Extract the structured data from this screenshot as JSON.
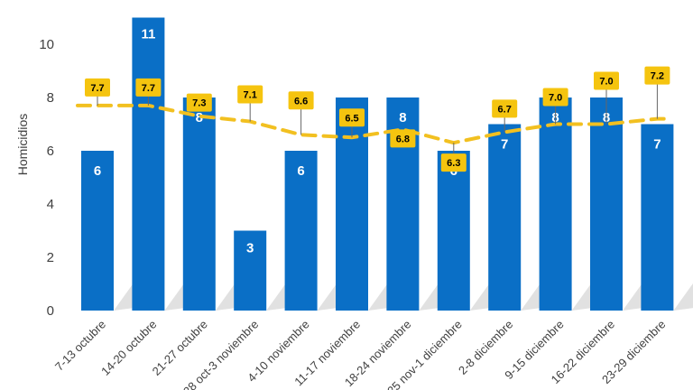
{
  "chart_data": {
    "type": "bar",
    "ylabel": "Homicidios",
    "ylim": [
      0,
      11
    ],
    "yticks": [
      "0",
      "2",
      "4",
      "6",
      "8",
      "10"
    ],
    "categories": [
      "7-13 octubre",
      "14-20 octubre",
      "21-27 octubre",
      "28 oct-3 noviembre",
      "4-10 noviembre",
      "11-17 noviembre",
      "18-24 noviembre",
      "25 nov-1 diciembre",
      "2-8 diciembre",
      "9-15 diciembre",
      "16-22 diciembre",
      "23-29 diciembre"
    ],
    "values": [
      6,
      11,
      8,
      3,
      6,
      8,
      8,
      6,
      7,
      8,
      8,
      7
    ],
    "bar_labels": [
      "6",
      "11",
      "8",
      "3",
      "6",
      "",
      "8",
      "6",
      "7",
      "8",
      "8",
      "7"
    ],
    "moving_average": [
      7.7,
      7.7,
      7.3,
      7.1,
      6.6,
      6.5,
      6.8,
      6.3,
      6.7,
      7.0,
      7.0,
      7.2
    ],
    "moving_average_labels": [
      "7.7",
      "7.7",
      "7.3",
      "7.1",
      "6.6",
      "6.5",
      "6.8",
      "6.3",
      "6.7",
      "7.0",
      "7.0",
      "7.2"
    ],
    "colors": {
      "bar": "#0a6fc6",
      "average_line": "#f2c020",
      "label_box": "#f5c40f",
      "axis_text": "#404040"
    },
    "grid": false
  }
}
